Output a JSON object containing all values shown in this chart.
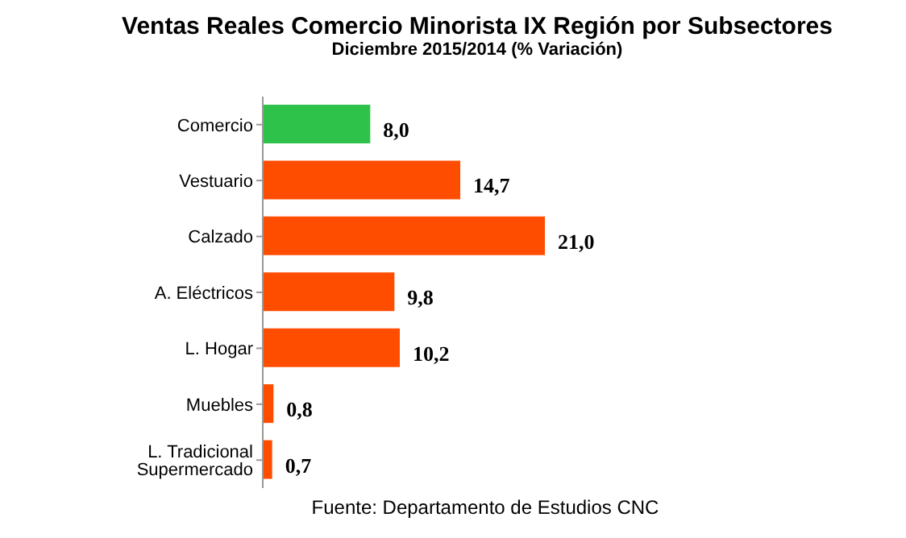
{
  "chart_data": {
    "type": "bar",
    "orientation": "horizontal",
    "title": "Ventas Reales Comercio Minorista IX Región por Subsectores",
    "subtitle": "Diciembre  2015/2014 (% Variación)",
    "categories": [
      "Comercio",
      "Vestuario",
      "Calzado",
      "A. Eléctricos",
      "L. Hogar",
      "Muebles",
      "L. Tradicional Supermercado"
    ],
    "values": [
      8.0,
      14.7,
      21.0,
      9.8,
      10.2,
      0.8,
      0.7
    ],
    "value_labels": [
      "8,0",
      "14,7",
      "21,0",
      "9,8",
      "10,2",
      "0,8",
      "0,7"
    ],
    "colors": [
      "#2fc24a",
      "#ff4d00",
      "#ff4d00",
      "#ff4d00",
      "#ff4d00",
      "#ff4d00",
      "#ff4d00"
    ],
    "tick_labels": "y",
    "annotations": [
      "Fuente: Departamento de Estudios CNC"
    ]
  }
}
